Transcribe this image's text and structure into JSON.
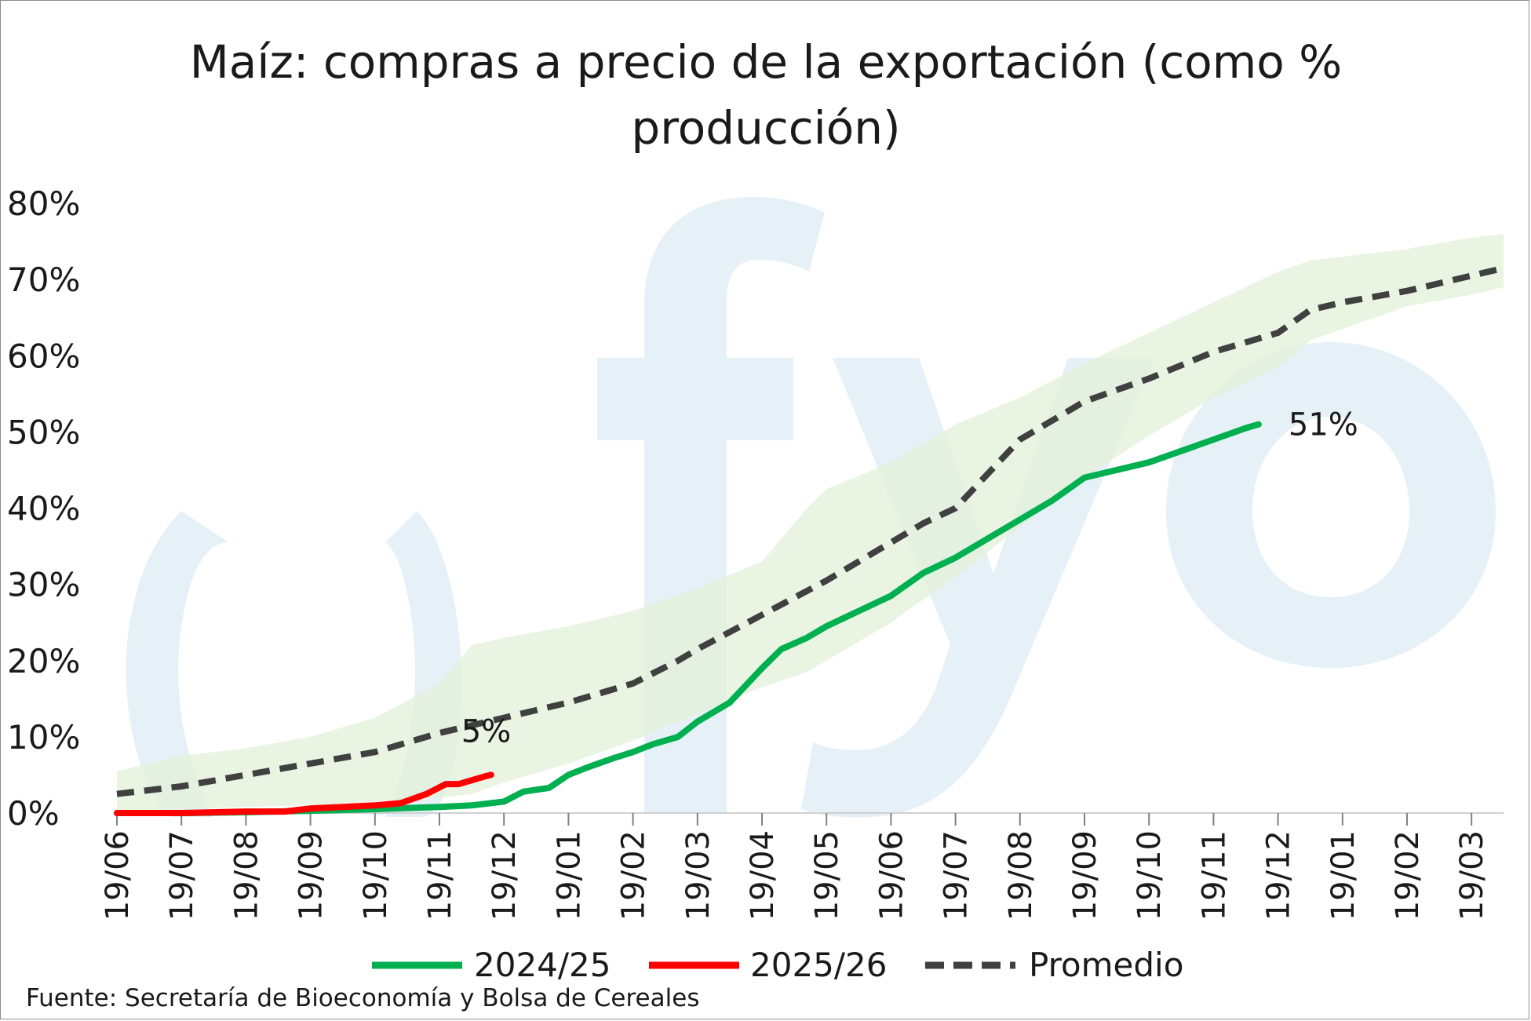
{
  "chart_data": {
    "type": "line",
    "title_lines": [
      "Maíz: compras a precio de la exportación (como %",
      "producción)"
    ],
    "xlabel": "",
    "ylabel": "",
    "ylim": [
      0,
      80
    ],
    "y_ticks": [
      "0%",
      "10%",
      "20%",
      "30%",
      "40%",
      "50%",
      "60%",
      "70%",
      "80%"
    ],
    "y_tick_values": [
      0,
      10,
      20,
      30,
      40,
      50,
      60,
      70,
      80
    ],
    "x_ticks": [
      "19/06",
      "19/07",
      "19/08",
      "19/09",
      "19/10",
      "19/11",
      "19/12",
      "19/01",
      "19/02",
      "19/03",
      "19/04",
      "19/05",
      "19/06",
      "19/07",
      "19/08",
      "19/09",
      "19/10",
      "19/11",
      "19/12",
      "19/01",
      "19/02",
      "19/03"
    ],
    "x_range": [
      0,
      21.5
    ],
    "grid": false,
    "legend_position": "bottom",
    "source": "Fuente: Secretaría de Bioeconomía y Bolsa de Cereales",
    "series": [
      {
        "name": "2024/25",
        "color": "#00b050",
        "x": [
          0,
          1,
          2,
          3,
          4,
          5,
          5.5,
          6,
          6.3,
          6.7,
          7,
          7.3,
          7.7,
          8,
          8.3,
          8.7,
          9,
          9.5,
          10,
          10.3,
          10.7,
          11,
          11.5,
          12,
          12.5,
          13,
          13.5,
          14,
          14.5,
          15,
          15.5,
          16,
          16.5,
          17,
          17.5,
          17.7
        ],
        "values": [
          0,
          0,
          0.1,
          0.3,
          0.5,
          0.8,
          1.0,
          1.5,
          2.8,
          3.3,
          5.0,
          6.0,
          7.2,
          8.0,
          9.0,
          10.0,
          12.0,
          14.5,
          19.0,
          21.5,
          23.0,
          24.5,
          26.5,
          28.5,
          31.5,
          33.5,
          36.0,
          38.5,
          41.0,
          44.0,
          45.0,
          46.0,
          47.5,
          49.0,
          50.5,
          51.0
        ],
        "end_label": "51%"
      },
      {
        "name": "2025/26",
        "color": "#ff0000",
        "x": [
          0,
          1,
          2,
          2.6,
          3,
          4,
          4.4,
          4.8,
          5.1,
          5.3,
          5.7,
          5.8
        ],
        "values": [
          0,
          0,
          0.2,
          0.2,
          0.6,
          1.0,
          1.3,
          2.5,
          3.8,
          3.8,
          4.8,
          5.0
        ],
        "end_label": "5%"
      },
      {
        "name": "Promedio",
        "color": "#404040",
        "x": [
          0,
          1,
          2,
          3,
          4,
          5,
          6,
          7,
          8,
          8.7,
          9,
          10,
          11,
          12,
          12.5,
          13,
          13.5,
          14,
          15,
          16,
          17,
          18,
          18.5,
          19,
          20,
          21,
          21.5
        ],
        "values": [
          2.5,
          3.5,
          5.0,
          6.5,
          8.0,
          10.5,
          12.5,
          14.5,
          17.0,
          20.0,
          21.5,
          26.0,
          30.5,
          35.5,
          38.0,
          40.0,
          44.5,
          49.0,
          54.0,
          57.0,
          60.5,
          63.0,
          66.0,
          67.0,
          68.5,
          70.5,
          71.5
        ]
      }
    ],
    "band": {
      "color": "#e3f0da",
      "x": [
        0,
        1,
        2,
        3,
        4,
        5,
        5.5,
        6,
        7,
        8,
        9,
        10,
        10.7,
        11,
        12,
        13,
        14,
        15,
        16,
        17,
        18,
        18.5,
        19,
        20,
        21,
        21.5
      ],
      "upper": [
        5.5,
        7.5,
        8.5,
        10.0,
        12.5,
        17.0,
        22.0,
        23.0,
        24.5,
        26.5,
        29.5,
        33.0,
        40.0,
        42.5,
        46.0,
        51.0,
        54.5,
        59.0,
        63.0,
        67.0,
        71.0,
        72.5,
        73.0,
        74.0,
        75.5,
        76.0
      ],
      "lower": [
        0,
        0.5,
        0.8,
        1.0,
        1.5,
        2.0,
        2.5,
        4.0,
        6.5,
        9.5,
        13.0,
        16.5,
        18.5,
        20.0,
        25.0,
        31.0,
        37.5,
        44.0,
        49.5,
        54.5,
        58.5,
        62.0,
        63.5,
        66.5,
        68.0,
        69.0
      ]
    }
  }
}
